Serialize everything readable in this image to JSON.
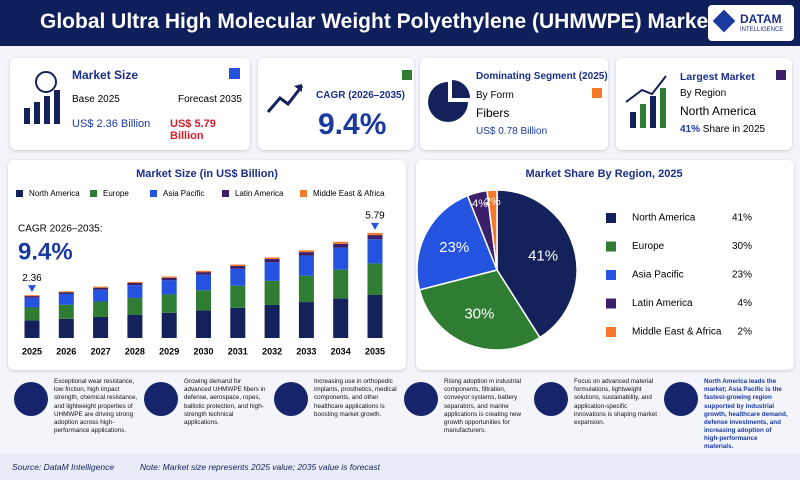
{
  "header": {
    "title": "Global Ultra High Molecular Weight Polyethylene (UHMWPE) Market",
    "logo": "DATAM",
    "logo_sub": "INTELLIGENCE"
  },
  "kpis": [
    {
      "title": "Market Size",
      "base_label": "Base 2025",
      "forecast_label": "Forecast 2035",
      "base_value": "US$ 2.36 Billion",
      "forecast_value": "US$ 5.79 Billion"
    },
    {
      "title": "CAGR (2026–2035)",
      "value": "9.4%"
    },
    {
      "title": "Dominating Segment (2025)",
      "sub": "By Form",
      "name": "Fibers",
      "value": "US$ 0.78 Billion"
    },
    {
      "title": "Largest Market",
      "sub": "By Region",
      "name": "North America",
      "value": "41%",
      "value_note": "Share in 2025"
    }
  ],
  "chart_data": [
    {
      "type": "bar",
      "stacked": true,
      "title": "Market Size (in US$ Billion)",
      "annotation_title": "CAGR 2026–2035:",
      "annotation_value": "9.4%",
      "categories": [
        "2025",
        "2026",
        "2027",
        "2028",
        "2029",
        "2030",
        "2031",
        "2032",
        "2033",
        "2034",
        "2035"
      ],
      "series": [
        {
          "name": "North America",
          "color": "#14215a",
          "values": [
            0.97,
            1.06,
            1.16,
            1.27,
            1.39,
            1.52,
            1.66,
            1.82,
            1.98,
            2.17,
            2.37
          ]
        },
        {
          "name": "Europe",
          "color": "#2e7d32",
          "values": [
            0.71,
            0.77,
            0.85,
            0.93,
            1.01,
            1.11,
            1.22,
            1.33,
            1.45,
            1.59,
            1.74
          ]
        },
        {
          "name": "Asia Pacific",
          "color": "#2453e0",
          "values": [
            0.54,
            0.59,
            0.65,
            0.71,
            0.78,
            0.85,
            0.93,
            1.02,
            1.11,
            1.22,
            1.33
          ]
        },
        {
          "name": "Latin America",
          "color": "#3b1f6b",
          "values": [
            0.09,
            0.1,
            0.11,
            0.12,
            0.14,
            0.15,
            0.16,
            0.18,
            0.19,
            0.21,
            0.23
          ]
        },
        {
          "name": "Middle East & Africa",
          "color": "#f47a2a",
          "values": [
            0.05,
            0.05,
            0.06,
            0.06,
            0.07,
            0.07,
            0.08,
            0.09,
            0.1,
            0.11,
            0.12
          ]
        }
      ],
      "annotations": [
        "2.36",
        "5.79"
      ],
      "ylim": [
        0,
        6.5
      ]
    },
    {
      "type": "pie",
      "title": "Market Share By Region, 2025",
      "categories": [
        "North America",
        "Europe",
        "Asia Pacific",
        "Latin America",
        "Middle East & Africa"
      ],
      "values": [
        41,
        30,
        23,
        4,
        2
      ],
      "value_labels": [
        "41%",
        "30%",
        "23%",
        "4%",
        "2%"
      ],
      "colors": [
        "#14215a",
        "#2e7d32",
        "#2453e0",
        "#3b1f6b",
        "#f47a2a"
      ]
    }
  ],
  "features": [
    "Exceptional wear resistance, low friction, high impact strength, chemical resistance, and lightweight properties of UHMWPE are driving strong adoption across high-performance applications.",
    "Growing demand for advanced UHMWPE fibers in defense, aerospace, ropes, ballistic protection, and high-strength technical applications.",
    "Increasing use in orthopedic implants, prosthetics, medical components, and other healthcare applications is boosting market growth.",
    "Rising adoption in industrial components, filtration, conveyor systems, battery separators, and marine applications is creating new growth opportunities for manufacturers.",
    "Focus on advanced material formulations, lightweight solutions, sustainability, and application-specific innovations is shaping market expansion.",
    "North America leads the market; Asia Pacific is the fastest-growing region supported by industrial growth, healthcare demand, defense investments, and increasing adoption of high-performance materials."
  ],
  "footer": {
    "source": "Source: DataM Intelligence",
    "note": "Note: Market size represents 2025 value; 2035 value is forecast"
  }
}
